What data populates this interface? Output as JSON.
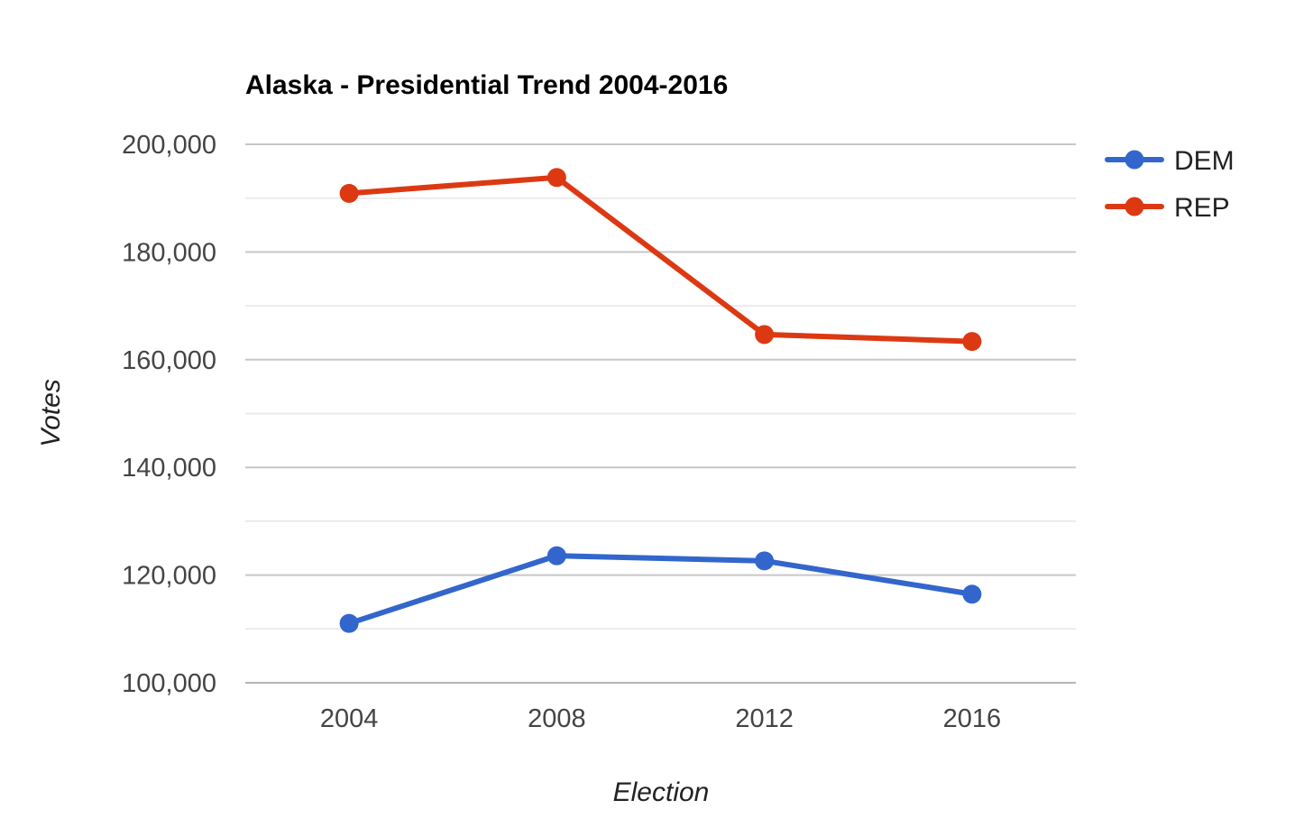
{
  "chart_data": {
    "type": "line",
    "title": "Alaska - Presidential Trend 2004-2016",
    "xlabel": "Election",
    "ylabel": "Votes",
    "categories": [
      "2004",
      "2008",
      "2012",
      "2016"
    ],
    "series": [
      {
        "name": "DEM",
        "color": "#3366cc",
        "values": [
          111025,
          123594,
          122640,
          116454
        ]
      },
      {
        "name": "REP",
        "color": "#dc3912",
        "values": [
          190889,
          193841,
          164676,
          163387
        ]
      }
    ],
    "ylim": [
      100000,
      200000
    ],
    "yticks": [
      "100,000",
      "120,000",
      "140,000",
      "160,000",
      "180,000",
      "200,000"
    ],
    "grid": true,
    "legend_position": "right"
  }
}
